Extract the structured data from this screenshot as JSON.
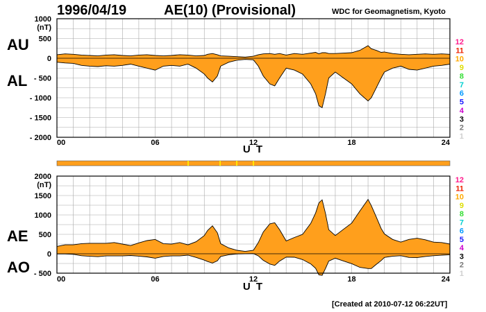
{
  "header": {
    "date": "1996/04/19",
    "index_title": "AE(10) (Provisional)",
    "source": "WDC for Geomagnetism, Kyoto"
  },
  "footer": {
    "created": "[Created at 2010-07-12 06:22UT]"
  },
  "colors": {
    "fill": "#ff9f1c",
    "grid": "#a8a8a8",
    "station_scale": [
      "#cfcfcf",
      "#777777",
      "#000000",
      "#cc00cc",
      "#1a1aff",
      "#0099ff",
      "#00d0d0",
      "#33dd33",
      "#dddd00",
      "#ffaa00",
      "#ee2200",
      "#ff1a8c"
    ]
  },
  "station_scale_labels": [
    "1",
    "2",
    "3",
    "4",
    "5",
    "6",
    "7",
    "8",
    "9",
    "10",
    "11",
    "12"
  ],
  "chart_data": [
    {
      "type": "area",
      "panel": "AU/AL",
      "upper_label": "AU",
      "lower_label": "AL",
      "unit": "(nT)",
      "xlabel": "U T",
      "x_ticks": [
        "00",
        "06",
        "12",
        "18",
        "24"
      ],
      "xlim": [
        0,
        24
      ],
      "ylim": [
        -2000,
        1000
      ],
      "y_ticks": [
        "1000",
        "500",
        "0",
        "- 500",
        "- 1000",
        "- 1500",
        "- 2000"
      ],
      "y_tick_values": [
        1000,
        500,
        0,
        -500,
        -1000,
        -1500,
        -2000
      ],
      "grid": true,
      "x": [
        0,
        0.5,
        1,
        1.5,
        2,
        2.5,
        3,
        3.5,
        4,
        4.5,
        5,
        5.5,
        6,
        6.5,
        7,
        7.5,
        8,
        8.5,
        9,
        9.2,
        9.5,
        9.8,
        10,
        10.5,
        11,
        11.5,
        12,
        12.3,
        12.6,
        13,
        13.3,
        13.6,
        14,
        14.5,
        15,
        15.5,
        15.8,
        16,
        16.2,
        16.4,
        16.6,
        17,
        17.5,
        18,
        18.5,
        19,
        19.2,
        19.5,
        19.8,
        20,
        20.5,
        21,
        21.5,
        22,
        22.5,
        23,
        23.5,
        24
      ],
      "series": [
        {
          "name": "AU",
          "values": [
            90,
            110,
            100,
            80,
            70,
            60,
            80,
            90,
            70,
            60,
            80,
            90,
            70,
            60,
            70,
            90,
            80,
            60,
            70,
            100,
            120,
            90,
            60,
            50,
            40,
            30,
            50,
            90,
            110,
            120,
            100,
            120,
            80,
            120,
            100,
            130,
            150,
            110,
            140,
            140,
            120,
            120,
            130,
            140,
            200,
            320,
            240,
            200,
            150,
            160,
            120,
            100,
            90,
            100,
            110,
            100,
            110,
            100
          ]
        },
        {
          "name": "AL",
          "values": [
            -100,
            -120,
            -130,
            -180,
            -200,
            -210,
            -190,
            -200,
            -180,
            -150,
            -200,
            -250,
            -300,
            -200,
            -180,
            -200,
            -150,
            -250,
            -400,
            -500,
            -600,
            -450,
            -200,
            -100,
            -50,
            -30,
            -40,
            -200,
            -450,
            -650,
            -700,
            -500,
            -250,
            -300,
            -400,
            -650,
            -900,
            -1200,
            -1250,
            -900,
            -500,
            -350,
            -500,
            -650,
            -900,
            -1080,
            -1000,
            -750,
            -500,
            -350,
            -250,
            -200,
            -280,
            -300,
            -250,
            -200,
            -180,
            -150
          ]
        }
      ]
    },
    {
      "type": "area",
      "panel": "AE/AO",
      "upper_label": "AE",
      "lower_label": "AO",
      "unit": "(nT)",
      "xlabel": "U T",
      "x_ticks": [
        "00",
        "06",
        "12",
        "18",
        "24"
      ],
      "xlim": [
        0,
        24
      ],
      "ylim": [
        -500,
        2000
      ],
      "y_ticks": [
        "2000",
        "1500",
        "1000",
        "500",
        "0",
        "- 500"
      ],
      "y_tick_values": [
        2000,
        1500,
        1000,
        500,
        0,
        -500
      ],
      "grid": true,
      "x": [
        0,
        0.5,
        1,
        1.5,
        2,
        2.5,
        3,
        3.5,
        4,
        4.5,
        5,
        5.5,
        6,
        6.5,
        7,
        7.5,
        8,
        8.5,
        9,
        9.2,
        9.5,
        9.8,
        10,
        10.5,
        11,
        11.5,
        12,
        12.3,
        12.6,
        13,
        13.3,
        13.6,
        14,
        14.5,
        15,
        15.5,
        15.8,
        16,
        16.2,
        16.4,
        16.6,
        17,
        17.5,
        18,
        18.5,
        19,
        19.2,
        19.5,
        19.8,
        20,
        20.5,
        21,
        21.5,
        22,
        22.5,
        23,
        23.5,
        24
      ],
      "series": [
        {
          "name": "AE",
          "values": [
            190,
            230,
            230,
            260,
            270,
            270,
            270,
            290,
            250,
            210,
            280,
            340,
            370,
            260,
            250,
            290,
            230,
            310,
            470,
            600,
            720,
            540,
            260,
            150,
            90,
            60,
            90,
            290,
            560,
            770,
            800,
            620,
            330,
            420,
            500,
            780,
            1050,
            1310,
            1390,
            1040,
            620,
            470,
            630,
            790,
            1100,
            1400,
            1240,
            950,
            650,
            510,
            370,
            300,
            370,
            400,
            360,
            300,
            290,
            250
          ]
        },
        {
          "name": "AO",
          "values": [
            -5,
            -5,
            -15,
            -50,
            -65,
            -75,
            -55,
            -55,
            -55,
            -45,
            -60,
            -80,
            -115,
            -70,
            -55,
            -55,
            -35,
            -95,
            -165,
            -200,
            -240,
            -180,
            -70,
            -25,
            -5,
            0,
            5,
            -55,
            -170,
            -265,
            -300,
            -190,
            -85,
            -90,
            -150,
            -260,
            -375,
            -545,
            -555,
            -380,
            -190,
            -115,
            -185,
            -255,
            -350,
            -380,
            -380,
            -275,
            -175,
            -95,
            -65,
            -50,
            -95,
            -100,
            -70,
            -50,
            -35,
            -25
          ]
        }
      ]
    }
  ]
}
